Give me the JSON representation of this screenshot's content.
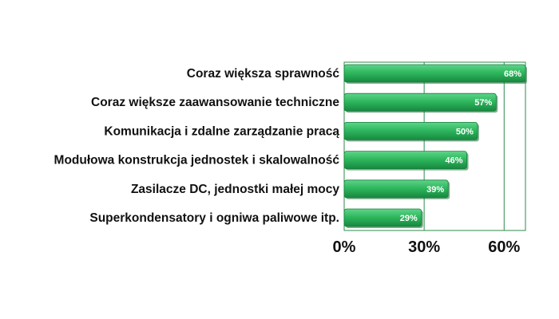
{
  "chart_data": {
    "type": "bar",
    "orientation": "horizontal",
    "categories": [
      "Coraz większa sprawność",
      "Coraz większe zaawansowanie techniczne",
      "Komunikacja i zdalne zarządzanie pracą",
      "Modułowa konstrukcja jednostek i skalowalność",
      "Zasilacze DC, jednostki małej mocy",
      "Superkondensatory i ogniwa paliwowe itp."
    ],
    "values": [
      68,
      57,
      50,
      46,
      39,
      29
    ],
    "value_labels": [
      "68%",
      "57%",
      "50%",
      "46%",
      "39%",
      "29%"
    ],
    "xlim": [
      0,
      68
    ],
    "xticks": [
      0,
      30,
      60
    ],
    "xtick_labels": [
      "0%",
      "30%",
      "60%"
    ],
    "grid": true,
    "title": "",
    "xlabel": "",
    "ylabel": "",
    "colors": {
      "bar_light": "#5fd48a",
      "bar_mid": "#2fb85e",
      "bar_dark": "#17883f",
      "grid": "#2e8b4a",
      "plot_border": "#2e8b4a"
    }
  }
}
